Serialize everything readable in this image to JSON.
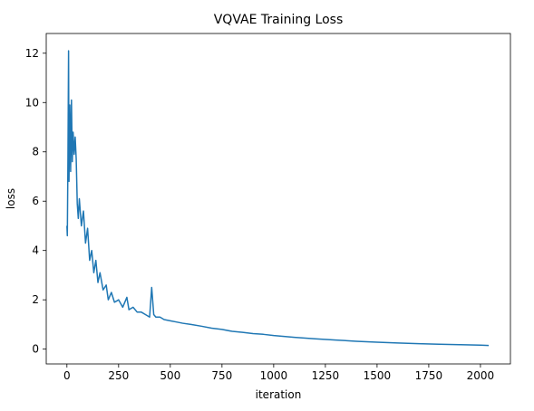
{
  "chart_data": {
    "type": "line",
    "title": "VQVAE Training Loss",
    "xlabel": "iteration",
    "ylabel": "loss",
    "xlim": [
      -100,
      2145
    ],
    "ylim": [
      -0.6,
      12.8
    ],
    "xticks": [
      0,
      250,
      500,
      750,
      1000,
      1250,
      1500,
      1750,
      2000
    ],
    "yticks": [
      0,
      2,
      4,
      6,
      8,
      10,
      12
    ],
    "grid": false,
    "legend": "none",
    "color": "#1f77b4",
    "series": [
      {
        "x": [
          0,
          2,
          5,
          8,
          10,
          14,
          18,
          22,
          26,
          30,
          35,
          40,
          45,
          50,
          55,
          60,
          70,
          80,
          90,
          100,
          110,
          120,
          130,
          140,
          150,
          160,
          175,
          190,
          200,
          215,
          230,
          250,
          270,
          290,
          300,
          320,
          340,
          360,
          380,
          400,
          410,
          420,
          430,
          450,
          470,
          500,
          530,
          560,
          600,
          650,
          700,
          750,
          800,
          850,
          900,
          950,
          1000,
          1100,
          1200,
          1300,
          1400,
          1500,
          1600,
          1700,
          1800,
          1900,
          2000,
          2040
        ],
        "y": [
          5.0,
          4.6,
          7.8,
          12.1,
          6.8,
          9.9,
          7.2,
          10.1,
          7.6,
          8.8,
          7.9,
          8.6,
          7.7,
          5.9,
          5.3,
          6.1,
          5.0,
          5.6,
          4.3,
          4.9,
          3.6,
          4.0,
          3.1,
          3.6,
          2.7,
          3.1,
          2.4,
          2.6,
          2.0,
          2.3,
          1.9,
          2.0,
          1.7,
          2.1,
          1.6,
          1.7,
          1.5,
          1.5,
          1.4,
          1.3,
          2.5,
          1.4,
          1.3,
          1.3,
          1.2,
          1.15,
          1.1,
          1.05,
          1.0,
          0.93,
          0.85,
          0.8,
          0.72,
          0.68,
          0.63,
          0.6,
          0.55,
          0.48,
          0.42,
          0.37,
          0.32,
          0.28,
          0.25,
          0.22,
          0.2,
          0.18,
          0.16,
          0.15
        ]
      }
    ]
  }
}
